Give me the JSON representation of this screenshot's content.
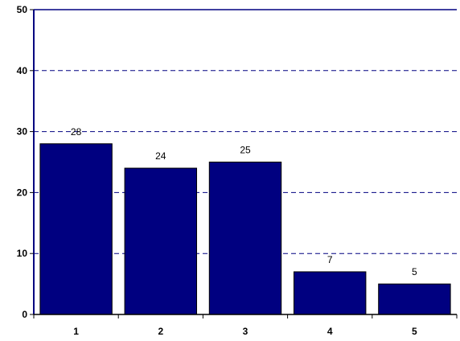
{
  "chart_data": {
    "type": "bar",
    "categories": [
      "1",
      "2",
      "3",
      "4",
      "5"
    ],
    "values": [
      28,
      24,
      25,
      7,
      5
    ],
    "data_labels": [
      "28",
      "24",
      "25",
      "7",
      "5"
    ],
    "title": "",
    "xlabel": "",
    "ylabel": "",
    "ylim": [
      0,
      50
    ],
    "yticks": [
      "0",
      "10",
      "20",
      "30",
      "40",
      "50"
    ],
    "grid": true,
    "legend": "none",
    "colors": {
      "bar": "#000080",
      "bar_edge": "#000000",
      "axis": "#000080",
      "grid": "#000080"
    }
  }
}
